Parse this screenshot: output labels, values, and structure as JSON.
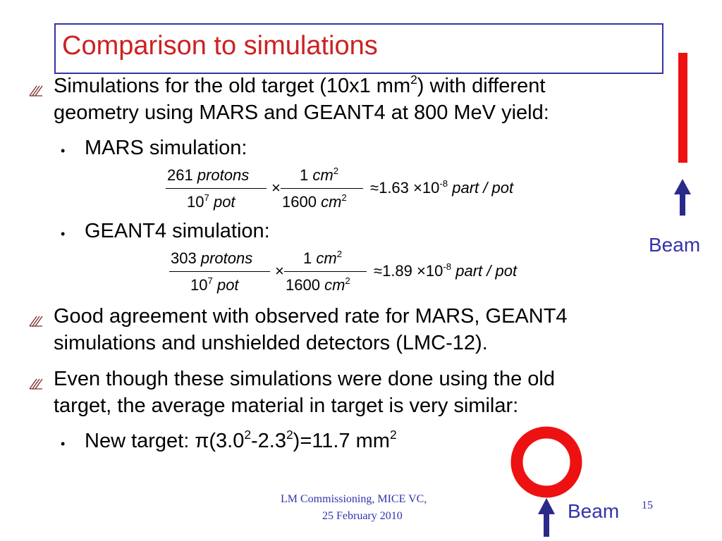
{
  "title": "Comparison to simulations",
  "bullets": [
    {
      "lines": [
        [
          "Simulations for the old target (10x1 mm",
          {
            "sup": "2"
          },
          ") with different"
        ],
        [
          "geometry using MARS and GEANT4 at 800 MeV yield:"
        ]
      ],
      "sub": [
        {
          "line": [
            "MARS simulation:"
          ],
          "formula": {
            "num1": "261",
            "num1_unit": "protons",
            "den1": "10",
            "den1_exp": "7",
            "den1_unit": "pot",
            "times": "×",
            "num2": "1",
            "num2_unit": "cm",
            "num2_exp": "2",
            "den2": "1600",
            "den2_unit": "cm",
            "den2_exp": "2",
            "approx": "≈",
            "result": "1.63",
            "times2": "×",
            "base": "10",
            "exp": "-8",
            "unit": "part / pot"
          }
        },
        {
          "line": [
            "GEANT4 simulation:"
          ],
          "formula": {
            "num1": "303",
            "num1_unit": "protons",
            "den1": "10",
            "den1_exp": "7",
            "den1_unit": "pot",
            "times": "×",
            "num2": "1",
            "num2_unit": "cm",
            "num2_exp": "2",
            "den2": "1600",
            "den2_unit": "cm",
            "den2_exp": "2",
            "approx": "≈",
            "result": "1.89",
            "times2": "×",
            "base": "10",
            "exp": "-8",
            "unit": "part / pot"
          }
        }
      ]
    },
    {
      "lines": [
        [
          "Good agreement with observed rate for MARS, GEANT4"
        ],
        [
          "simulations and unshielded detectors (LMC-12)."
        ]
      ]
    },
    {
      "lines": [
        [
          "Even though these simulations were done using the old"
        ],
        [
          "target, the average material in target is very similar:"
        ]
      ],
      "sub": [
        {
          "line": [
            "New target: ",
            "π",
            "(3.0",
            {
              "sup": "2"
            },
            "-2.3",
            {
              "sup": "2"
            },
            ")=11.7 mm",
            {
              "sup": "2"
            }
          ]
        }
      ]
    }
  ],
  "labels": {
    "beam_top": "Beam",
    "beam_bottom": "Beam"
  },
  "footer": {
    "lines": [
      "LM Commissioning, MICE VC,",
      "25 February 2010"
    ],
    "page": "15"
  }
}
